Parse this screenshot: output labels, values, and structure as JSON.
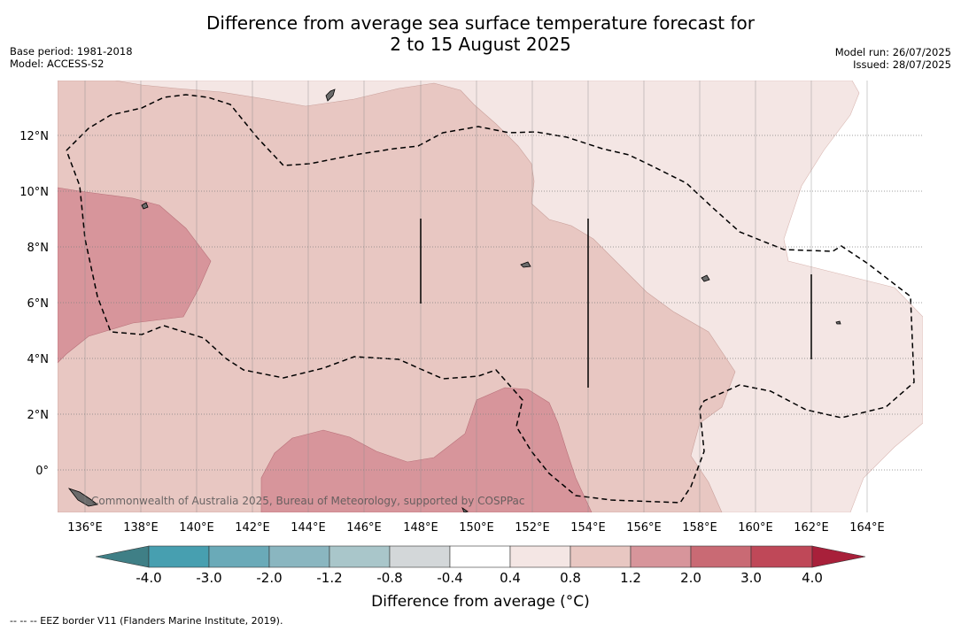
{
  "title_line1": "Difference from average sea surface temperature forecast for",
  "title_line2": "2 to 15 August 2025",
  "left_info": {
    "base_period": "Base period: 1981-2018",
    "model": "Model: ACCESS-S2"
  },
  "right_info": {
    "model_run": "Model run: 26/07/2025",
    "issued": "Issued: 28/07/2025"
  },
  "longitude_labels": [
    "136°E",
    "138°E",
    "140°E",
    "142°E",
    "144°E",
    "146°E",
    "148°E",
    "150°E",
    "152°E",
    "154°E",
    "156°E",
    "158°E",
    "160°E",
    "162°E",
    "164°E"
  ],
  "latitude_labels": [
    "12°N",
    "10°N",
    "8°N",
    "6°N",
    "4°N",
    "2°N",
    "0°"
  ],
  "copyright": "Commonwealth of Australia 2025, Bureau of Meteorology, supported by COSPPac",
  "colorbar": {
    "ticks": [
      "-4.0",
      "-3.0",
      "-2.0",
      "-1.2",
      "-0.8",
      "-0.4",
      "0.4",
      "0.8",
      "1.2",
      "2.0",
      "3.0",
      "4.0"
    ],
    "colors": {
      "under": "#3f7f86",
      "bins": [
        "#479fb0",
        "#6aaab8",
        "#8ab6c0",
        "#a9c6ca",
        "#d3d7d9",
        "#ffffff",
        "#f4e6e4",
        "#e8c7c2",
        "#d7959b",
        "#c96a74",
        "#bf4858"
      ],
      "over": "#a8203a"
    },
    "label": "Difference from average (°C)"
  },
  "legend_note": "-- -- -- EEZ border V11 (Flanders Marine Institute, 2019).",
  "map_colors": {
    "weak_warm": "#f4e6e4",
    "mild_warm": "#e8c7c2",
    "warm": "#d7959b"
  }
}
